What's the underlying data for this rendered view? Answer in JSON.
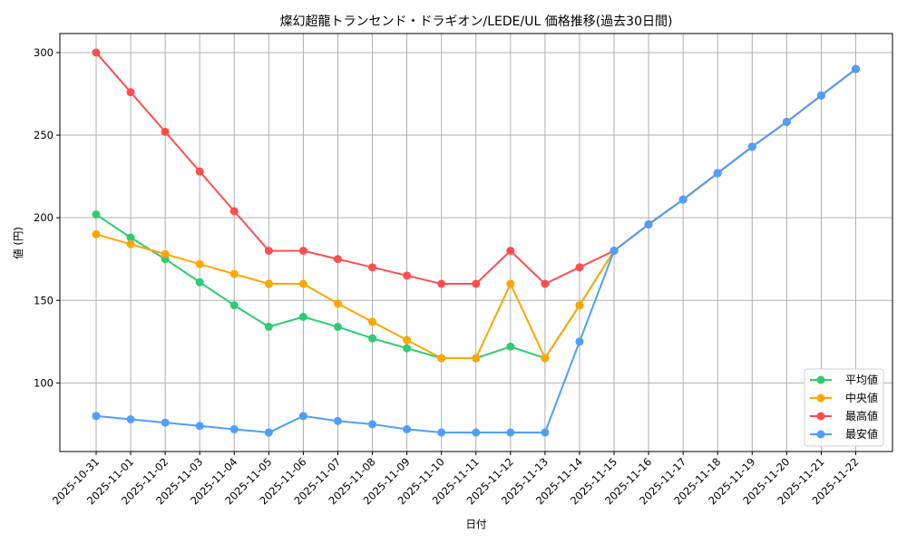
{
  "chart_data": {
    "type": "line",
    "title": "燦幻超龍トランセンド・ドラギオン/LEDE/UL 価格推移(過去30日間)",
    "xlabel": "日付",
    "ylabel": "値 (円)",
    "ylim": [
      58.5,
      311.5
    ],
    "yticks": [
      100,
      150,
      200,
      250,
      300
    ],
    "grid": true,
    "legend_position": "lower right",
    "categories": [
      "2025-10-31",
      "2025-11-01",
      "2025-11-02",
      "2025-11-03",
      "2025-11-04",
      "2025-11-05",
      "2025-11-06",
      "2025-11-07",
      "2025-11-08",
      "2025-11-09",
      "2025-11-10",
      "2025-11-11",
      "2025-11-12",
      "2025-11-13",
      "2025-11-14",
      "2025-11-15",
      "2025-11-16",
      "2025-11-17",
      "2025-11-18",
      "2025-11-19",
      "2025-11-20",
      "2025-11-21",
      "2025-11-22"
    ],
    "series": [
      {
        "name": "平均値",
        "color": "#2ecc71",
        "values": [
          202,
          188,
          175,
          161,
          147,
          134,
          140,
          134,
          127,
          121,
          115,
          115,
          122,
          115,
          147,
          180,
          196,
          211,
          227,
          243,
          258,
          274,
          290
        ]
      },
      {
        "name": "中央値",
        "color": "#ffa500",
        "values": [
          190,
          184,
          178,
          172,
          166,
          160,
          160,
          148,
          137,
          126,
          115,
          115,
          160,
          115,
          147,
          180,
          196,
          211,
          227,
          243,
          258,
          274,
          290
        ]
      },
      {
        "name": "最高値",
        "color": "#ff4d4d",
        "values": [
          300,
          276,
          252,
          228,
          204,
          180,
          180,
          175,
          170,
          165,
          160,
          160,
          180,
          160,
          170,
          180,
          196,
          211,
          227,
          243,
          258,
          274,
          290
        ]
      },
      {
        "name": "最安値",
        "color": "#4d9fff",
        "values": [
          80,
          78,
          76,
          74,
          72,
          70,
          80,
          77,
          75,
          72,
          70,
          70,
          70,
          70,
          125,
          180,
          196,
          211,
          227,
          243,
          258,
          274,
          290
        ]
      }
    ]
  }
}
